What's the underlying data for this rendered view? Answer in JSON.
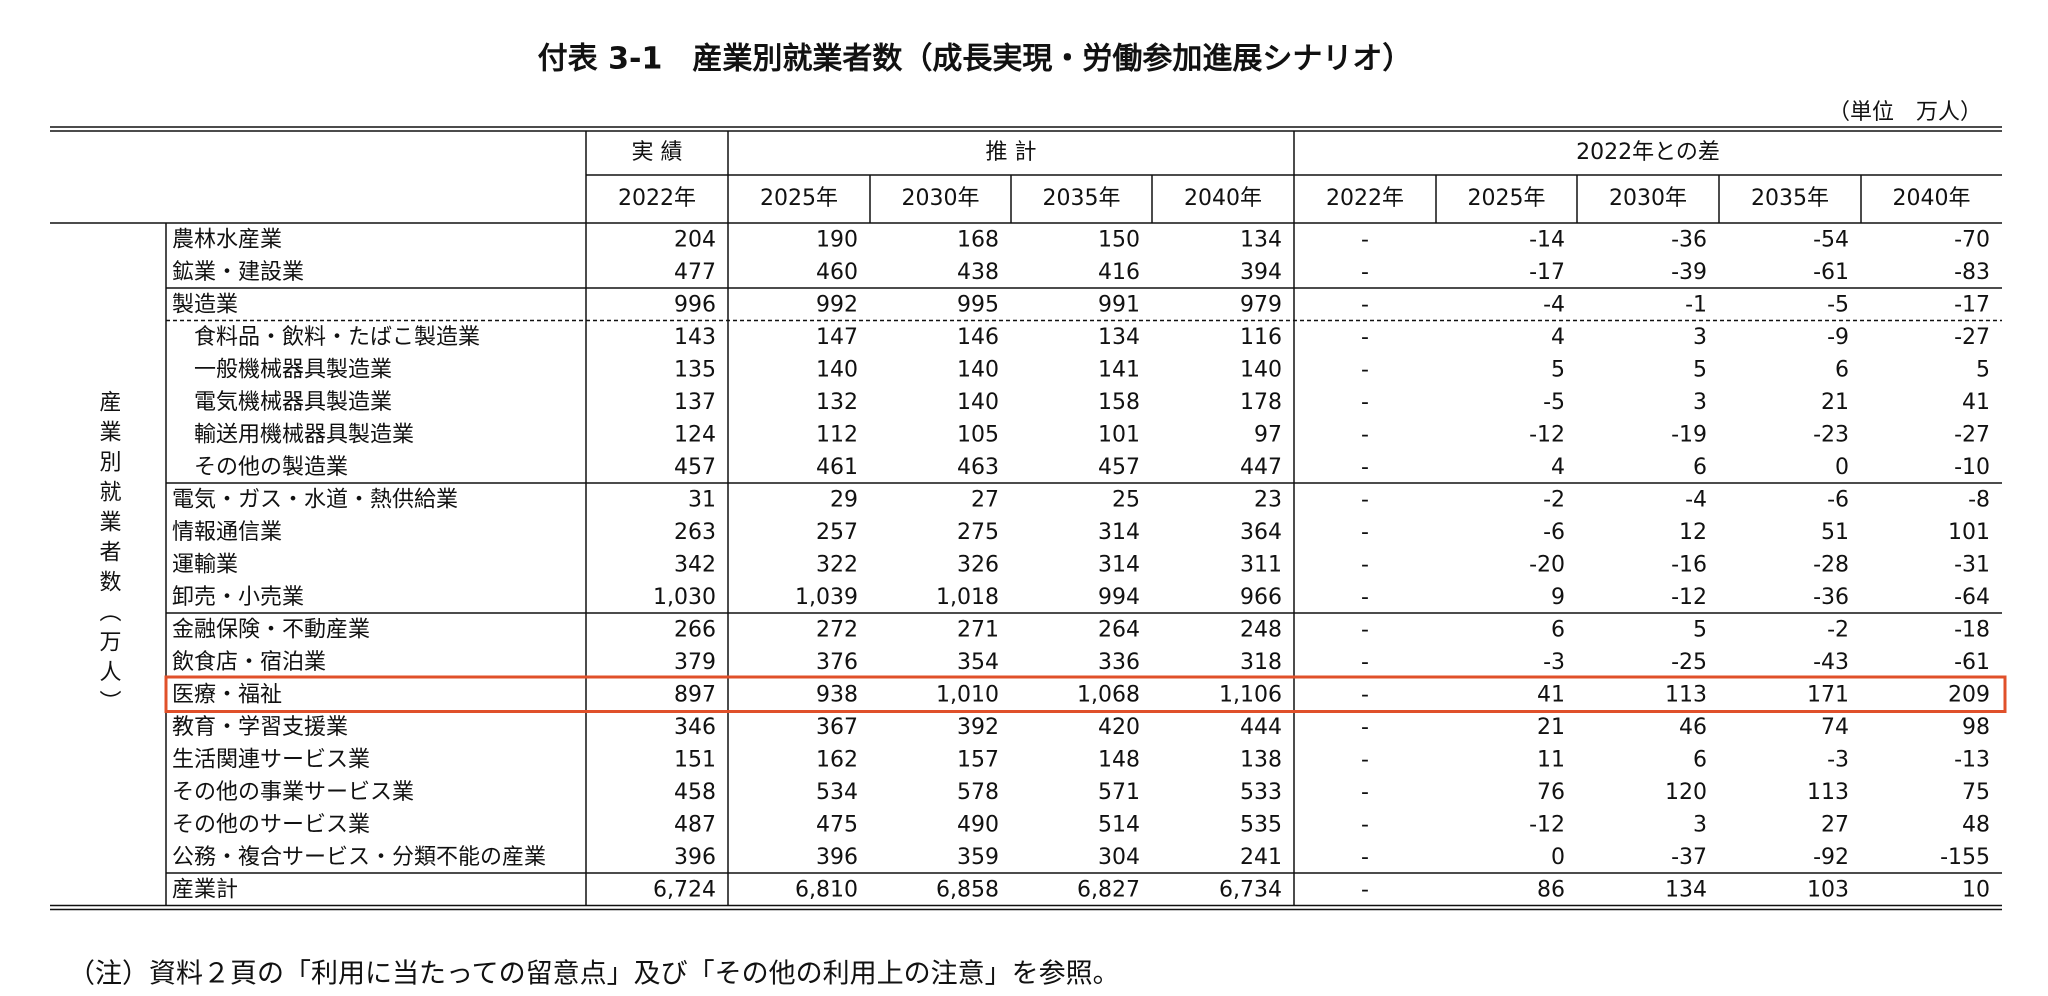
{
  "header": {
    "title": "付表 3-1　産業別就業者数（成長実現・労働参加進展シナリオ）",
    "unit": "（単位　万人）"
  },
  "table": {
    "side_label": "産業別就業者数（万人）",
    "groups": [
      "実 績",
      "推 計",
      "2022年との差"
    ],
    "columns": [
      "2022年",
      "2025年",
      "2030年",
      "2035年",
      "2040年",
      "2022年",
      "2025年",
      "2030年",
      "2035年",
      "2040年"
    ],
    "rows": [
      [
        "農林水産業",
        "204",
        "190",
        "168",
        "150",
        "134",
        "-",
        "-14",
        "-36",
        "-54",
        "-70"
      ],
      [
        "鉱業・建設業",
        "477",
        "460",
        "438",
        "416",
        "394",
        "-",
        "-17",
        "-39",
        "-61",
        "-83"
      ],
      [
        "製造業",
        "996",
        "992",
        "995",
        "991",
        "979",
        "-",
        "-4",
        "-1",
        "-5",
        "-17"
      ],
      [
        "食料品・飲料・たばこ製造業",
        "143",
        "147",
        "146",
        "134",
        "116",
        "-",
        "4",
        "3",
        "-9",
        "-27"
      ],
      [
        "一般機械器具製造業",
        "135",
        "140",
        "140",
        "141",
        "140",
        "-",
        "5",
        "5",
        "6",
        "5"
      ],
      [
        "電気機械器具製造業",
        "137",
        "132",
        "140",
        "158",
        "178",
        "-",
        "-5",
        "3",
        "21",
        "41"
      ],
      [
        "輸送用機械器具製造業",
        "124",
        "112",
        "105",
        "101",
        "97",
        "-",
        "-12",
        "-19",
        "-23",
        "-27"
      ],
      [
        "その他の製造業",
        "457",
        "461",
        "463",
        "457",
        "447",
        "-",
        "4",
        "6",
        "0",
        "-10"
      ],
      [
        "電気・ガス・水道・熱供給業",
        "31",
        "29",
        "27",
        "25",
        "23",
        "-",
        "-2",
        "-4",
        "-6",
        "-8"
      ],
      [
        "情報通信業",
        "263",
        "257",
        "275",
        "314",
        "364",
        "-",
        "-6",
        "12",
        "51",
        "101"
      ],
      [
        "運輸業",
        "342",
        "322",
        "326",
        "314",
        "311",
        "-",
        "-20",
        "-16",
        "-28",
        "-31"
      ],
      [
        "卸売・小売業",
        "1,030",
        "1,039",
        "1,018",
        "994",
        "966",
        "-",
        "9",
        "-12",
        "-36",
        "-64"
      ],
      [
        "金融保険・不動産業",
        "266",
        "272",
        "271",
        "264",
        "248",
        "-",
        "6",
        "5",
        "-2",
        "-18"
      ],
      [
        "飲食店・宿泊業",
        "379",
        "376",
        "354",
        "336",
        "318",
        "-",
        "-3",
        "-25",
        "-43",
        "-61"
      ],
      [
        "医療・福祉",
        "897",
        "938",
        "1,010",
        "1,068",
        "1,106",
        "-",
        "41",
        "113",
        "171",
        "209"
      ],
      [
        "教育・学習支援業",
        "346",
        "367",
        "392",
        "420",
        "444",
        "-",
        "21",
        "46",
        "74",
        "98"
      ],
      [
        "生活関連サービス業",
        "151",
        "162",
        "157",
        "148",
        "138",
        "-",
        "11",
        "6",
        "-3",
        "-13"
      ],
      [
        "その他の事業サービス業",
        "458",
        "534",
        "578",
        "571",
        "533",
        "-",
        "76",
        "120",
        "113",
        "75"
      ],
      [
        "その他のサービス業",
        "487",
        "475",
        "490",
        "514",
        "535",
        "-",
        "-12",
        "3",
        "27",
        "48"
      ],
      [
        "公務・複合サービス・分類不能の産業",
        "396",
        "396",
        "359",
        "304",
        "241",
        "-",
        "0",
        "-37",
        "-92",
        "-155"
      ],
      [
        "産業計",
        "6,724",
        "6,810",
        "6,858",
        "6,827",
        "6,734",
        "-",
        "86",
        "134",
        "103",
        "10"
      ]
    ]
  },
  "note": "（注）資料２頁の「利用に当たっての留意点」及び「その他の利用上の注意」を参照。"
}
